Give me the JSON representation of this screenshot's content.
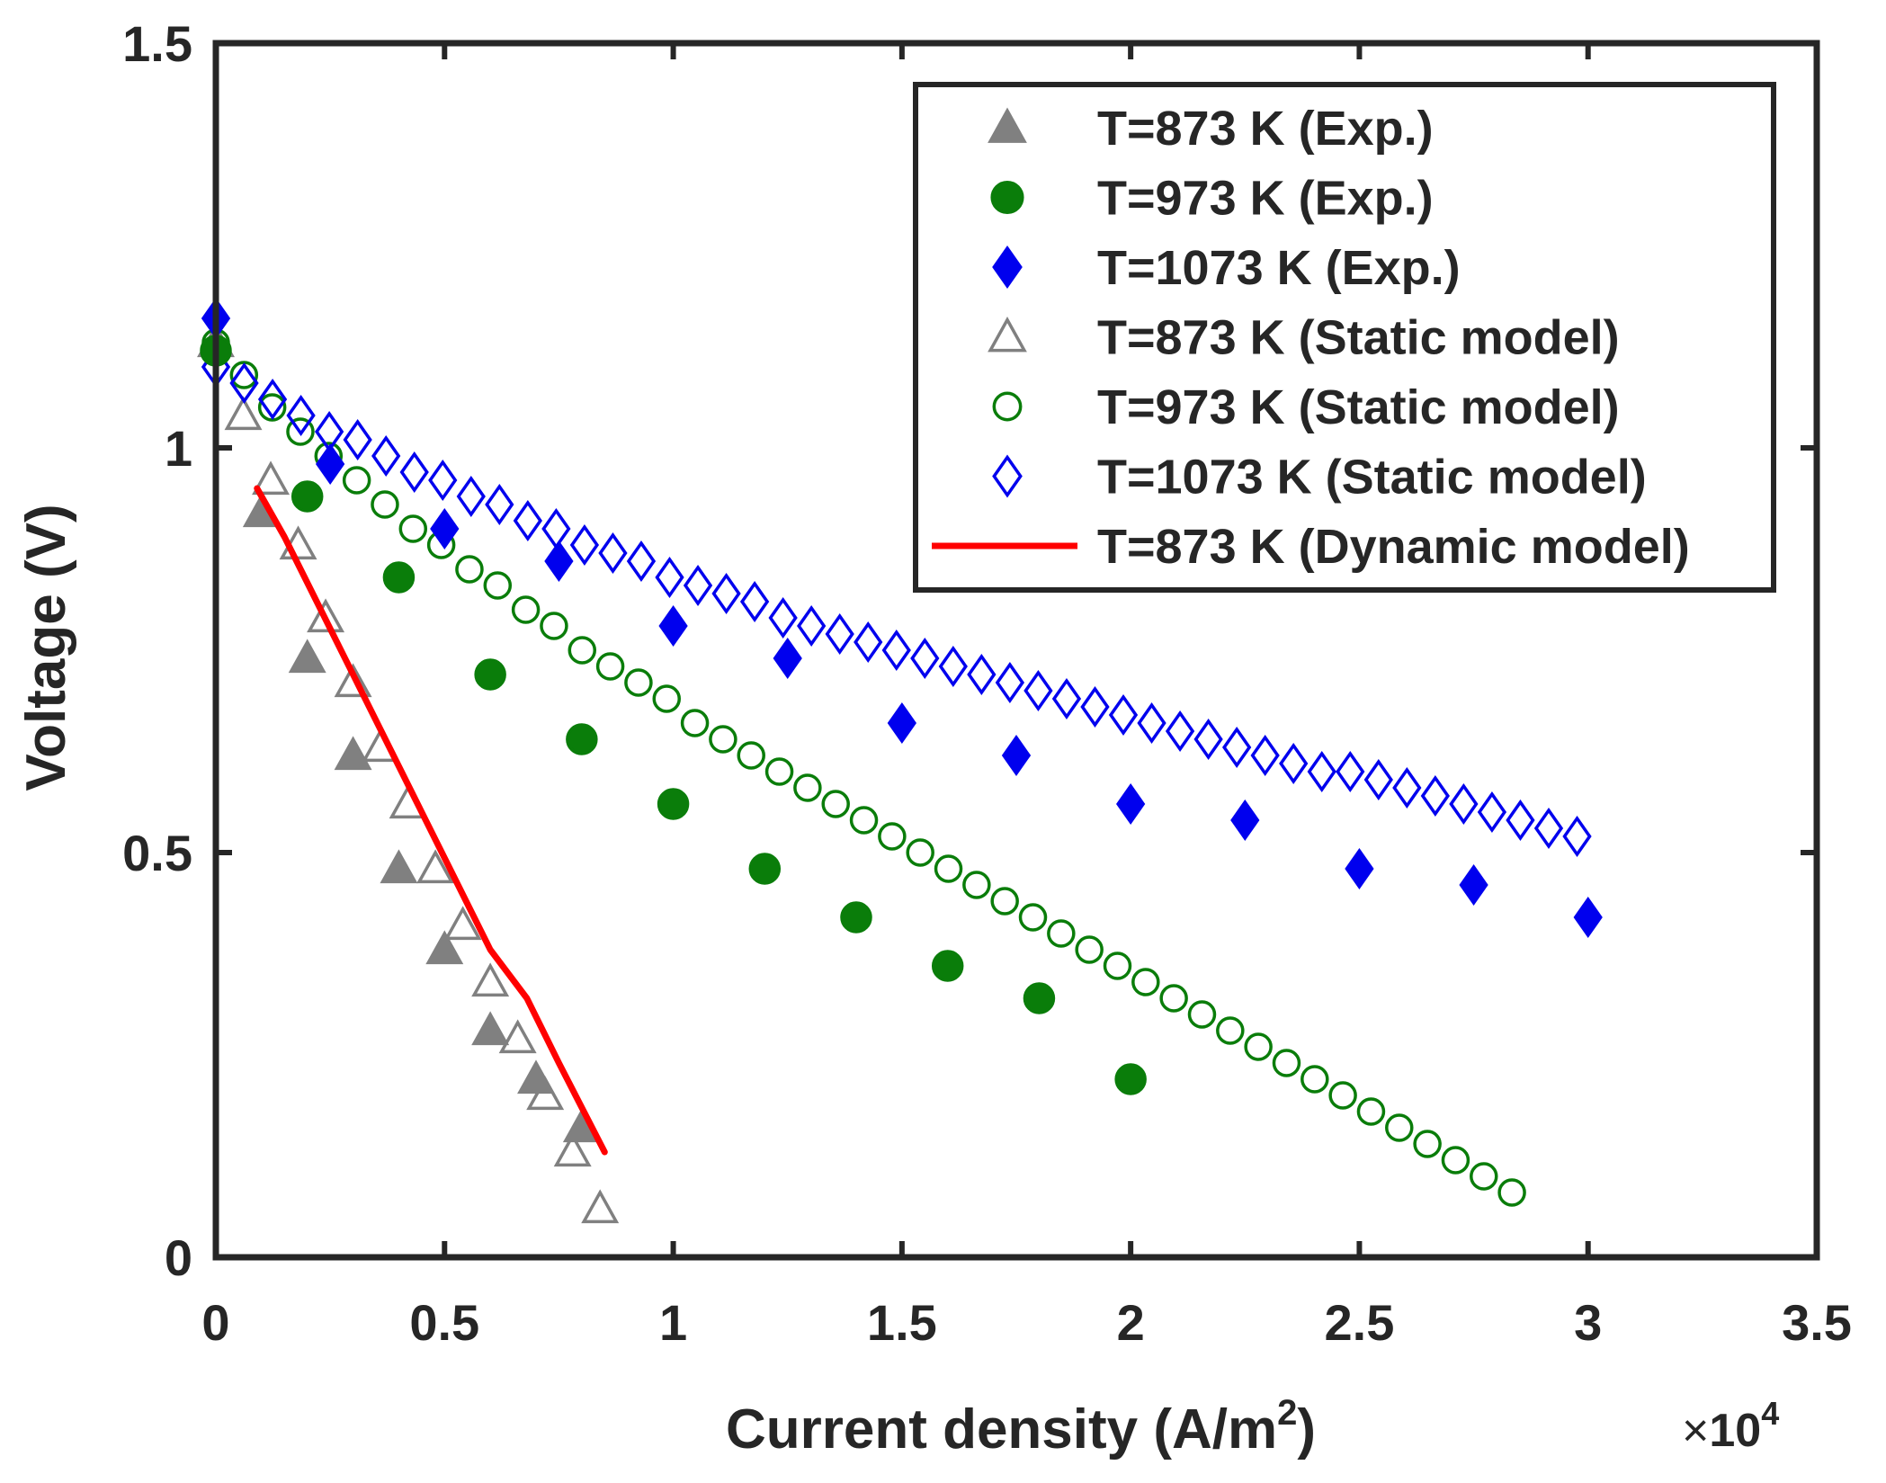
{
  "chart_data": {
    "type": "scatter",
    "xlabel": "Current density (A/m",
    "xlabel_superscript": "2",
    "xlabel_suffix": ")",
    "x_multiplier_symbol": "×",
    "x_multiplier_base": "10",
    "x_multiplier_exponent": "4",
    "ylabel": "Voltage (V)",
    "xlim": [
      0,
      3.5
    ],
    "ylim": [
      0,
      1.5
    ],
    "x_ticks": [
      0,
      0.5,
      1,
      1.5,
      2,
      2.5,
      3,
      3.5
    ],
    "x_tick_labels": [
      "0",
      "0.5",
      "1",
      "1.5",
      "2",
      "2.5",
      "3",
      "3.5"
    ],
    "y_ticks": [
      0,
      0.5,
      1,
      1.5
    ],
    "y_tick_labels": [
      "0",
      "0.5",
      "1",
      "1.5"
    ],
    "grid": false,
    "legend_position": "top-right",
    "colors": {
      "gray": "#808080",
      "green": "#0a7d0a",
      "blue": "#0000ee",
      "red": "#ff0000",
      "axis": "#262626"
    },
    "series": [
      {
        "name": "T=873 K (Exp.)",
        "marker": "triangle-filled",
        "color": "#808080",
        "x": [
          0.1,
          0.2,
          0.3,
          0.4,
          0.5,
          0.6,
          0.7,
          0.8
        ],
        "y": [
          0.92,
          0.74,
          0.62,
          0.48,
          0.38,
          0.28,
          0.22,
          0.16
        ]
      },
      {
        "name": "T=973 K (Exp.)",
        "marker": "circle-filled",
        "color": "#0a7d0a",
        "x": [
          0,
          0.2,
          0.4,
          0.6,
          0.8,
          1.0,
          1.2,
          1.4,
          1.6,
          1.8,
          2.0
        ],
        "y": [
          1.12,
          0.94,
          0.84,
          0.72,
          0.64,
          0.56,
          0.48,
          0.42,
          0.36,
          0.32,
          0.22
        ]
      },
      {
        "name": "T=1073 K (Exp.)",
        "marker": "diamond-filled",
        "color": "#0000ee",
        "x": [
          0,
          0.25,
          0.5,
          0.75,
          1.0,
          1.25,
          1.5,
          1.75,
          2.0,
          2.25,
          2.5,
          2.75,
          3.0
        ],
        "y": [
          1.16,
          0.98,
          0.9,
          0.86,
          0.78,
          0.74,
          0.66,
          0.62,
          0.56,
          0.54,
          0.48,
          0.46,
          0.42
        ]
      },
      {
        "name": "T=873 K (Static model)",
        "marker": "triangle-open",
        "color": "#808080",
        "x": [
          0,
          0.06,
          0.12,
          0.18,
          0.24,
          0.3,
          0.36,
          0.42,
          0.48,
          0.54,
          0.6,
          0.66,
          0.72,
          0.78,
          0.84
        ],
        "y": [
          1.13,
          1.04,
          0.96,
          0.88,
          0.79,
          0.71,
          0.63,
          0.56,
          0.48,
          0.41,
          0.34,
          0.27,
          0.2,
          0.13,
          0.06
        ]
      },
      {
        "name": "T=973 K (Static model)",
        "marker": "circle-open",
        "color": "#0a7d0a",
        "x": [
          0,
          0.0616,
          0.1232,
          0.1848,
          0.2464,
          0.308,
          0.3696,
          0.4312,
          0.4928,
          0.5544,
          0.616,
          0.6776,
          0.7392,
          0.8008,
          0.8624,
          0.924,
          0.9856,
          1.0472,
          1.1088,
          1.1704,
          1.232,
          1.2936,
          1.3552,
          1.4168,
          1.4784,
          1.54,
          1.6016,
          1.6632,
          1.7248,
          1.7864,
          1.848,
          1.9096,
          1.9712,
          2.0328,
          2.0944,
          2.156,
          2.2176,
          2.2792,
          2.3408,
          2.4024,
          2.464,
          2.5256,
          2.5872,
          2.6488,
          2.7104,
          2.772,
          2.8336
        ],
        "y": [
          1.13,
          1.09,
          1.05,
          1.02,
          0.99,
          0.96,
          0.93,
          0.9,
          0.88,
          0.85,
          0.83,
          0.8,
          0.78,
          0.75,
          0.73,
          0.71,
          0.69,
          0.66,
          0.64,
          0.62,
          0.6,
          0.58,
          0.56,
          0.54,
          0.52,
          0.5,
          0.48,
          0.46,
          0.44,
          0.42,
          0.4,
          0.38,
          0.36,
          0.34,
          0.32,
          0.3,
          0.28,
          0.26,
          0.24,
          0.22,
          0.2,
          0.18,
          0.16,
          0.14,
          0.12,
          0.1,
          0.08
        ]
      },
      {
        "name": "T=1073 K (Static model)",
        "marker": "diamond-open",
        "color": "#0000ee",
        "x": [
          0,
          0.062,
          0.124,
          0.186,
          0.248,
          0.31,
          0.372,
          0.434,
          0.496,
          0.558,
          0.62,
          0.682,
          0.744,
          0.806,
          0.868,
          0.93,
          0.992,
          1.054,
          1.116,
          1.178,
          1.24,
          1.302,
          1.364,
          1.426,
          1.488,
          1.55,
          1.612,
          1.674,
          1.736,
          1.798,
          1.86,
          1.922,
          1.984,
          2.046,
          2.108,
          2.17,
          2.232,
          2.294,
          2.356,
          2.418,
          2.48,
          2.542,
          2.604,
          2.666,
          2.728,
          2.79,
          2.852,
          2.914,
          2.976
        ],
        "y": [
          1.1,
          1.08,
          1.06,
          1.04,
          1.02,
          1.01,
          0.99,
          0.97,
          0.96,
          0.94,
          0.93,
          0.91,
          0.9,
          0.88,
          0.87,
          0.86,
          0.84,
          0.83,
          0.82,
          0.81,
          0.79,
          0.78,
          0.77,
          0.76,
          0.75,
          0.74,
          0.73,
          0.72,
          0.71,
          0.7,
          0.69,
          0.68,
          0.67,
          0.66,
          0.65,
          0.64,
          0.63,
          0.62,
          0.61,
          0.6,
          0.6,
          0.59,
          0.58,
          0.57,
          0.56,
          0.55,
          0.54,
          0.53,
          0.52
        ]
      },
      {
        "name": "T=873 K (Dynamic model)",
        "marker": "line",
        "color": "#ff0000",
        "x": [
          0.09,
          0.15,
          0.3,
          0.45,
          0.6,
          0.68,
          0.75,
          0.85
        ],
        "y": [
          0.95,
          0.89,
          0.72,
          0.55,
          0.38,
          0.32,
          0.24,
          0.13
        ]
      }
    ]
  }
}
